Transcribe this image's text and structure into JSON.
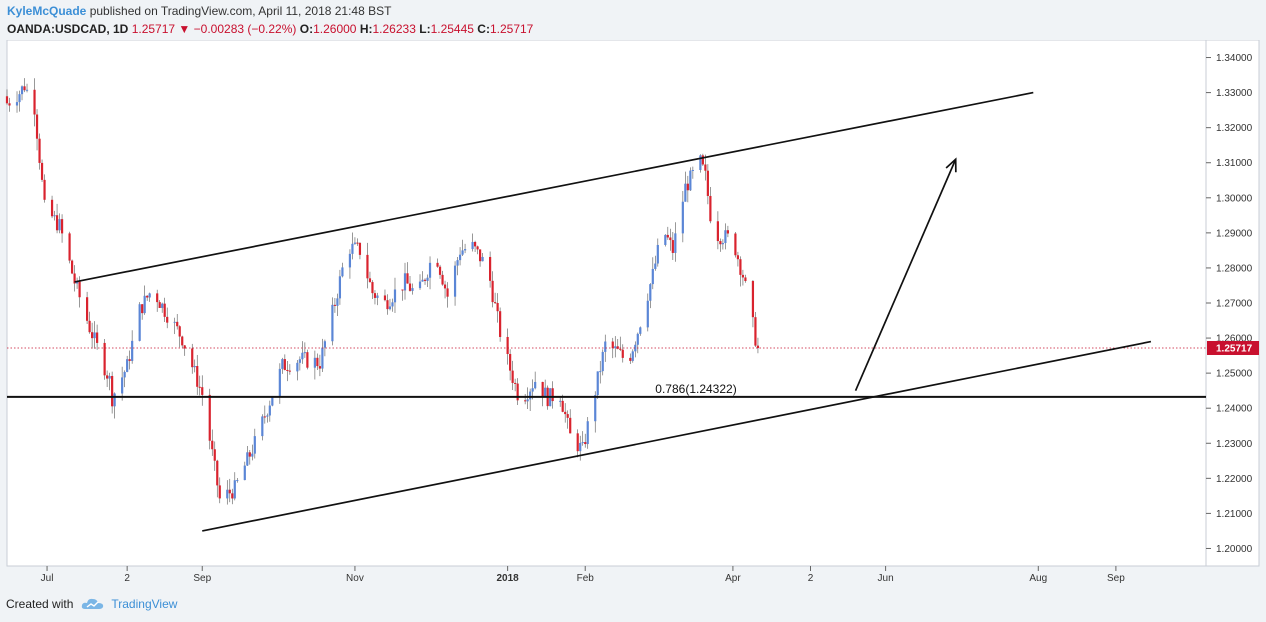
{
  "header": {
    "author": "KyleMcQuade",
    "published_text": "published on TradingView.com, April 11, 2018 21:48 BST",
    "symbol": "OANDA:USDCAD, 1D",
    "last_price": "1.25717",
    "change_arrow": "▼",
    "change": "−0.00283 (−0.22%)",
    "o_label": "O:",
    "o_value": "1.26000",
    "h_label": "H:",
    "h_value": "1.26233",
    "l_label": "L:",
    "l_value": "1.25445",
    "c_label": "C:",
    "c_value": "1.25717"
  },
  "footer": {
    "created_with": "Created with",
    "brand": "TradingView"
  },
  "colors": {
    "up": "#5b86d6",
    "down": "#d9232e",
    "price_tag": "#c8102e",
    "brand": "#3c8fd6"
  },
  "chart_data": {
    "type": "candlestick",
    "symbol": "OANDA:USDCAD",
    "timeframe": "1D",
    "y_range": [
      1.195,
      1.345
    ],
    "y_ticks": [
      "1.20000",
      "1.21000",
      "1.22000",
      "1.23000",
      "1.24000",
      "1.25000",
      "1.26000",
      "1.27000",
      "1.28000",
      "1.29000",
      "1.30000",
      "1.31000",
      "1.32000",
      "1.33000",
      "1.34000"
    ],
    "x_start": "2017-06-15",
    "x_end": "2018-10-07",
    "x_ticks": [
      {
        "label": "Jul",
        "date": "2017-07-01",
        "bold": false
      },
      {
        "label": "2",
        "date": "2017-08-02",
        "bold": false
      },
      {
        "label": "Sep",
        "date": "2017-09-01",
        "bold": false
      },
      {
        "label": "Nov",
        "date": "2017-11-01",
        "bold": false
      },
      {
        "label": "2018",
        "date": "2018-01-01",
        "bold": true
      },
      {
        "label": "Feb",
        "date": "2018-02-01",
        "bold": false
      },
      {
        "label": "Apr",
        "date": "2018-04-01",
        "bold": false
      },
      {
        "label": "2",
        "date": "2018-05-02",
        "bold": false
      },
      {
        "label": "Jun",
        "date": "2018-06-01",
        "bold": false
      },
      {
        "label": "Aug",
        "date": "2018-08-01",
        "bold": false
      },
      {
        "label": "Sep",
        "date": "2018-09-01",
        "bold": false
      }
    ],
    "current_price": {
      "value": 1.25717,
      "label": "1.25717"
    },
    "close_path": [
      [
        "2017-06-15",
        1.327
      ],
      [
        "2017-06-20",
        1.33
      ],
      [
        "2017-06-22",
        1.332
      ],
      [
        "2017-06-26",
        1.326
      ],
      [
        "2017-06-30",
        1.297
      ],
      [
        "2017-07-06",
        1.292
      ],
      [
        "2017-07-12",
        1.276
      ],
      [
        "2017-07-18",
        1.263
      ],
      [
        "2017-07-26",
        1.248
      ],
      [
        "2017-07-27",
        1.243
      ],
      [
        "2017-08-02",
        1.252
      ],
      [
        "2017-08-07",
        1.268
      ],
      [
        "2017-08-12",
        1.274
      ],
      [
        "2017-08-17",
        1.268
      ],
      [
        "2017-08-24",
        1.26
      ],
      [
        "2017-09-01",
        1.244
      ],
      [
        "2017-09-08",
        1.214
      ],
      [
        "2017-09-14",
        1.217
      ],
      [
        "2017-09-22",
        1.23
      ],
      [
        "2017-09-28",
        1.242
      ],
      [
        "2017-10-03",
        1.252
      ],
      [
        "2017-10-10",
        1.254
      ],
      [
        "2017-10-18",
        1.253
      ],
      [
        "2017-10-24",
        1.27
      ],
      [
        "2017-10-29",
        1.286
      ],
      [
        "2017-11-03",
        1.285
      ],
      [
        "2017-11-08",
        1.273
      ],
      [
        "2017-11-13",
        1.27
      ],
      [
        "2017-11-21",
        1.276
      ],
      [
        "2017-11-26",
        1.272
      ],
      [
        "2017-12-03",
        1.285
      ],
      [
        "2017-12-08",
        1.272
      ],
      [
        "2017-12-13",
        1.285
      ],
      [
        "2017-12-18",
        1.286
      ],
      [
        "2017-12-24",
        1.28
      ],
      [
        "2017-12-30",
        1.258
      ],
      [
        "2018-01-06",
        1.242
      ],
      [
        "2018-01-12",
        1.248
      ],
      [
        "2018-01-17",
        1.243
      ],
      [
        "2018-01-22",
        1.244
      ],
      [
        "2018-01-26",
        1.232
      ],
      [
        "2018-01-31",
        1.228
      ],
      [
        "2018-02-05",
        1.245
      ],
      [
        "2018-02-09",
        1.258
      ],
      [
        "2018-02-14",
        1.256
      ],
      [
        "2018-02-18",
        1.253
      ],
      [
        "2018-02-22",
        1.262
      ],
      [
        "2018-02-28",
        1.278
      ],
      [
        "2018-03-04",
        1.291
      ],
      [
        "2018-03-08",
        1.285
      ],
      [
        "2018-03-13",
        1.303
      ],
      [
        "2018-03-19",
        1.31
      ],
      [
        "2018-03-21",
        1.306
      ],
      [
        "2018-03-24",
        1.29
      ],
      [
        "2018-03-28",
        1.289
      ],
      [
        "2018-04-01",
        1.288
      ],
      [
        "2018-04-05",
        1.278
      ],
      [
        "2018-04-10",
        1.26
      ],
      [
        "2018-04-11",
        1.25717
      ]
    ],
    "trendlines": [
      {
        "name": "upper-channel",
        "from": [
          "2017-07-12",
          1.276
        ],
        "to": [
          "2018-07-30",
          1.33
        ]
      },
      {
        "name": "lower-channel",
        "from": [
          "2017-09-01",
          1.205
        ],
        "to": [
          "2018-09-15",
          1.259
        ]
      },
      {
        "name": "fib-level",
        "from": [
          "2017-06-15",
          1.24322
        ],
        "to": [
          "2018-10-07",
          1.24322
        ]
      },
      {
        "name": "projection-arrow",
        "from": [
          "2018-05-20",
          1.245
        ],
        "to": [
          "2018-06-29",
          1.311
        ]
      }
    ],
    "annotations": [
      {
        "text": "0.786(1.24322)",
        "date": "2018-03-01",
        "value": 1.24322
      }
    ]
  }
}
